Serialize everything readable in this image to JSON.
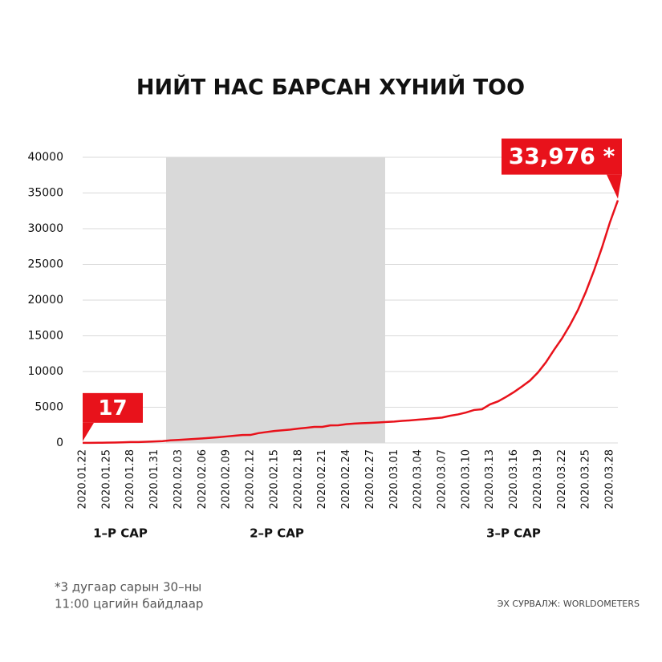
{
  "chart_data": {
    "type": "line",
    "title": "НИЙТ НАС БАРСАН ХҮНИЙ ТОО",
    "categories": [
      "2020.01.22",
      null,
      null,
      "2020.01.25",
      null,
      null,
      "2020.01.28",
      null,
      null,
      "2020.01.31",
      null,
      null,
      "2020.02.03",
      null,
      null,
      "2020.02.06",
      null,
      null,
      "2020.02.09",
      null,
      null,
      "2020.02.12",
      null,
      null,
      "2020.02.15",
      null,
      null,
      "2020.02.18",
      null,
      null,
      "2020.02.21",
      null,
      null,
      "2020.02.24",
      null,
      null,
      "2020.02.27",
      null,
      null,
      "2020.03.01",
      null,
      null,
      "2020.03.04",
      null,
      null,
      "2020.03.07",
      null,
      null,
      "2020.03.10",
      null,
      null,
      "2020.03.13",
      null,
      null,
      "2020.03.16",
      null,
      null,
      "2020.03.19",
      null,
      null,
      "2020.03.22",
      null,
      null,
      "2020.03.25",
      null,
      null,
      "2020.03.28",
      null
    ],
    "values": [
      17,
      18,
      26,
      42,
      56,
      82,
      131,
      133,
      171,
      213,
      259,
      362,
      426,
      492,
      564,
      634,
      719,
      806,
      906,
      1013,
      1113,
      1118,
      1371,
      1523,
      1666,
      1770,
      1868,
      2007,
      2122,
      2247,
      2251,
      2458,
      2469,
      2629,
      2708,
      2770,
      2814,
      2872,
      2941,
      2996,
      3085,
      3160,
      3254,
      3348,
      3460,
      3558,
      3803,
      3996,
      4262,
      4615,
      4720,
      5404,
      5819,
      6440,
      7126,
      7905,
      8733,
      9867,
      11299,
      13011,
      14623,
      16497,
      18615,
      21181,
      24103,
      27324,
      30873,
      33976
    ],
    "value_labels": [
      "17",
      null,
      null,
      null,
      null,
      null,
      null,
      null,
      null,
      null,
      null,
      null,
      null,
      null,
      null,
      null,
      null,
      null,
      null,
      null,
      null,
      null,
      null,
      null,
      null,
      null,
      null,
      null,
      null,
      null,
      null,
      null,
      null,
      null,
      null,
      null,
      null,
      null,
      null,
      null,
      null,
      null,
      null,
      null,
      null,
      null,
      null,
      null,
      null,
      null,
      null,
      null,
      null,
      null,
      null,
      null,
      null,
      null,
      null,
      null,
      null,
      null,
      null,
      null,
      null,
      null,
      null,
      "33,976 *"
    ],
    "color": "#e8121b",
    "ylim": [
      0,
      40000
    ],
    "yticks": [
      0,
      5000,
      10000,
      15000,
      20000,
      25000,
      30000,
      35000,
      40000
    ],
    "grid": true,
    "months": [
      "1–Р САР",
      "2–Р САР",
      "3–Р САР"
    ],
    "footnote": [
      "*3 дугаар сарын 30–ны",
      "11:00 цагийн байдлаар"
    ],
    "source": "ЭХ СУРВАЛЖ: WORLDOMETERS"
  }
}
